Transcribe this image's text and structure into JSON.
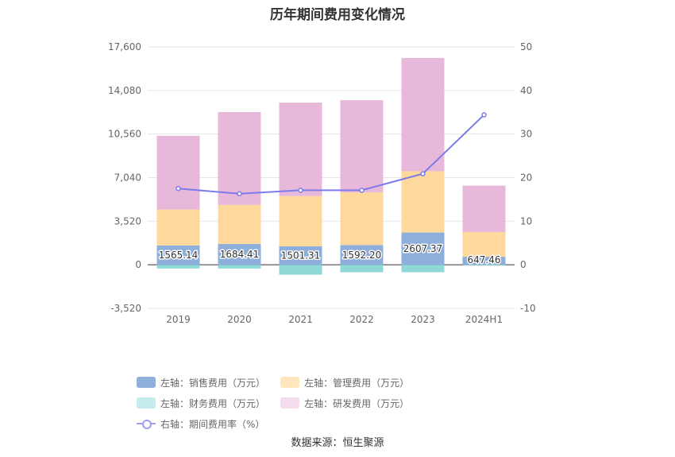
{
  "chart_data": {
    "type": "bar",
    "title": "历年期间费用变化情况",
    "categories": [
      "2019",
      "2020",
      "2021",
      "2022",
      "2023",
      "2024H1"
    ],
    "series": [
      {
        "name": "左轴：销售费用（万元）",
        "axis": "left",
        "stack": "a",
        "color": "#8eaedc",
        "values": [
          1565.14,
          1684.41,
          1501.31,
          1592.2,
          2607.37,
          647.46
        ],
        "labels": [
          "1565.14",
          "1684.41",
          "1501.31",
          "1592.20",
          "2607.37",
          "647.46"
        ]
      },
      {
        "name": "左轴：管理费用（万元）",
        "axis": "left",
        "stack": "a",
        "color": "#ffd99b",
        "values": [
          2900,
          3150,
          4050,
          4250,
          4950,
          2000
        ]
      },
      {
        "name": "左轴：财务费用（万元）",
        "axis": "left",
        "stack": "b",
        "color": "#8ed8d8",
        "values": [
          -300,
          -300,
          -800,
          -600,
          -600,
          -50
        ]
      },
      {
        "name": "左轴：研发费用（万元）",
        "axis": "left",
        "stack": "a",
        "color": "#e8b8da",
        "values": [
          5950,
          7500,
          7550,
          7450,
          9150,
          3750
        ]
      },
      {
        "name": "右轴：期间费用率（%）",
        "axis": "right",
        "type": "line",
        "color": "#7b7bea",
        "values": [
          17.5,
          16.3,
          17.1,
          17.1,
          20.9,
          34.4
        ]
      }
    ],
    "y_left": {
      "ticks": [
        "-3,520",
        "0",
        "3,520",
        "7,040",
        "10,560",
        "14,080",
        "17,600"
      ],
      "tick_values": [
        -3520,
        0,
        3520,
        7040,
        10560,
        14080,
        17600
      ],
      "min": -3520,
      "max": 17600
    },
    "y_right": {
      "ticks": [
        "-10",
        "0",
        "10",
        "20",
        "30",
        "40",
        "50"
      ],
      "tick_values": [
        -10,
        0,
        10,
        20,
        30,
        40,
        50
      ],
      "min": -10,
      "max": 50
    },
    "legend_position": "bottom",
    "source": "数据来源：恒生聚源"
  }
}
